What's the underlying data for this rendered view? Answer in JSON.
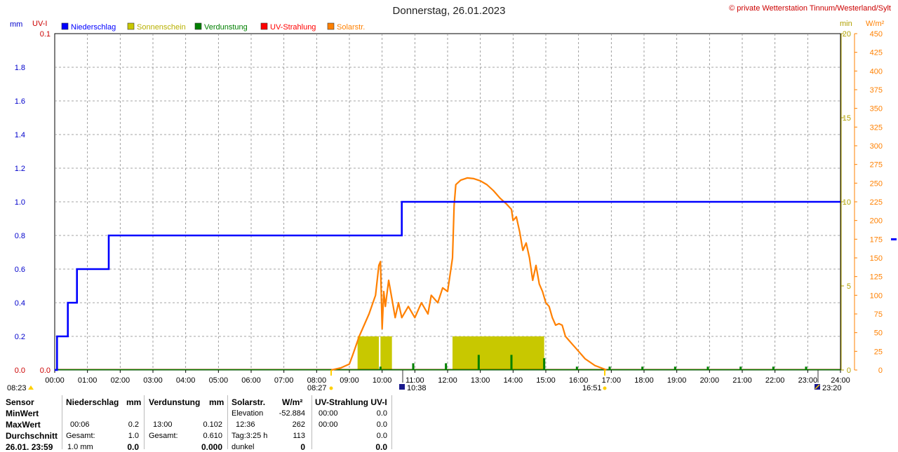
{
  "header": {
    "title": "Donnerstag, 26.01.2023",
    "copyright": "© private Wetterstation Tinnum/Westerland/Sylt",
    "unit_mm": "mm",
    "unit_uvi": "UV-I",
    "unit_min": "min",
    "unit_wm2": "W/m²"
  },
  "legend": [
    {
      "label": "Niederschlag",
      "color": "#0000ff"
    },
    {
      "label": "Sonnenschein",
      "color": "#c8c800"
    },
    {
      "label": "Verdunstung",
      "color": "#008000"
    },
    {
      "label": "UV-Strahlung",
      "color": "#ff0000"
    },
    {
      "label": "Solarstr.",
      "color": "#ff8000"
    }
  ],
  "sun_markers": {
    "sunrise": "08:23",
    "sunrise_alt": "08:27",
    "max_time": "10:38",
    "sunset": "16:51",
    "moon": "23:20"
  },
  "chart_data": {
    "type": "line",
    "title": "Donnerstag, 26.01.2023",
    "x_range": [
      "00:00",
      "24:00"
    ],
    "x_ticks": [
      "00:00",
      "01:00",
      "02:00",
      "03:00",
      "04:00",
      "05:00",
      "06:00",
      "07:00",
      "08:00",
      "09:00",
      "10:00",
      "11:00",
      "12:00",
      "13:00",
      "14:00",
      "15:00",
      "16:00",
      "17:00",
      "18:00",
      "19:00",
      "20:00",
      "21:00",
      "22:00",
      "23:00",
      "24:00"
    ],
    "axes": {
      "mm": {
        "ticks": [
          "0.0",
          "0.2",
          "0.4",
          "0.6",
          "0.8",
          "1.0",
          "1.2",
          "1.4",
          "1.6",
          "1.8"
        ],
        "range": [
          0,
          2.0
        ]
      },
      "uvi": {
        "ticks": [
          "0.0",
          "0.1"
        ],
        "range": [
          0,
          0.1
        ]
      },
      "min": {
        "ticks": [
          "0",
          "5",
          "10",
          "15",
          "20"
        ],
        "range": [
          0,
          20
        ]
      },
      "wm2": {
        "ticks": [
          "0",
          "25",
          "50",
          "75",
          "100",
          "125",
          "150",
          "175",
          "200",
          "225",
          "250",
          "275",
          "300",
          "325",
          "350",
          "375",
          "400",
          "425",
          "450"
        ],
        "range": [
          0,
          450
        ]
      }
    },
    "grid": true,
    "series": [
      {
        "name": "Niederschlag",
        "axis": "mm",
        "color": "#0000ff",
        "style": "step",
        "points": [
          [
            0.0,
            0.0
          ],
          [
            0.07,
            0.2
          ],
          [
            0.4,
            0.4
          ],
          [
            0.68,
            0.6
          ],
          [
            1.65,
            0.8
          ],
          [
            10.6,
            1.0
          ],
          [
            24.0,
            1.0
          ]
        ]
      },
      {
        "name": "Sonnenschein",
        "axis": "min",
        "color": "#c8c800",
        "style": "bar",
        "intervals": [
          [
            9.25,
            9.9,
            2.0
          ],
          [
            9.95,
            10.3,
            2.0
          ],
          [
            12.15,
            14.95,
            2.0
          ]
        ]
      },
      {
        "name": "Verdunstung",
        "axis": "mm",
        "color": "#008000",
        "style": "spikes",
        "points": [
          [
            9.95,
            0.02
          ],
          [
            10.95,
            0.04
          ],
          [
            11.95,
            0.04
          ],
          [
            12.95,
            0.09
          ],
          [
            13.95,
            0.09
          ],
          [
            14.95,
            0.07
          ],
          [
            15.95,
            0.02
          ],
          [
            16.95,
            0.02
          ],
          [
            17.95,
            0.02
          ],
          [
            18.95,
            0.02
          ],
          [
            19.95,
            0.02
          ],
          [
            20.95,
            0.02
          ],
          [
            21.95,
            0.02
          ],
          [
            22.95,
            0.02
          ]
        ]
      },
      {
        "name": "UV-Strahlung",
        "axis": "uvi",
        "color": "#ff0000",
        "style": "line",
        "points": [
          [
            0,
            0
          ],
          [
            24,
            0
          ]
        ]
      },
      {
        "name": "Solarstr.",
        "axis": "wm2",
        "color": "#ff8000",
        "style": "line",
        "points": [
          [
            8.45,
            0
          ],
          [
            8.75,
            3
          ],
          [
            9.0,
            8
          ],
          [
            9.1,
            20
          ],
          [
            9.3,
            45
          ],
          [
            9.6,
            75
          ],
          [
            9.8,
            100
          ],
          [
            9.9,
            140
          ],
          [
            9.95,
            145
          ],
          [
            10.0,
            55
          ],
          [
            10.05,
            105
          ],
          [
            10.1,
            85
          ],
          [
            10.2,
            120
          ],
          [
            10.3,
            95
          ],
          [
            10.4,
            70
          ],
          [
            10.5,
            90
          ],
          [
            10.6,
            70
          ],
          [
            10.8,
            85
          ],
          [
            11.0,
            70
          ],
          [
            11.2,
            90
          ],
          [
            11.4,
            75
          ],
          [
            11.5,
            100
          ],
          [
            11.7,
            90
          ],
          [
            11.85,
            110
          ],
          [
            12.0,
            105
          ],
          [
            12.1,
            135
          ],
          [
            12.15,
            150
          ],
          [
            12.2,
            220
          ],
          [
            12.25,
            248
          ],
          [
            12.4,
            254
          ],
          [
            12.6,
            257
          ],
          [
            12.8,
            256
          ],
          [
            13.0,
            253
          ],
          [
            13.2,
            248
          ],
          [
            13.4,
            240
          ],
          [
            13.6,
            230
          ],
          [
            13.8,
            222
          ],
          [
            13.95,
            215
          ],
          [
            14.0,
            200
          ],
          [
            14.1,
            205
          ],
          [
            14.2,
            185
          ],
          [
            14.3,
            160
          ],
          [
            14.4,
            170
          ],
          [
            14.5,
            150
          ],
          [
            14.6,
            120
          ],
          [
            14.7,
            140
          ],
          [
            14.8,
            115
          ],
          [
            14.9,
            105
          ],
          [
            15.0,
            90
          ],
          [
            15.1,
            85
          ],
          [
            15.2,
            70
          ],
          [
            15.3,
            60
          ],
          [
            15.4,
            62
          ],
          [
            15.5,
            60
          ],
          [
            15.6,
            45
          ],
          [
            15.8,
            35
          ],
          [
            16.0,
            25
          ],
          [
            16.2,
            15
          ],
          [
            16.5,
            6
          ],
          [
            16.8,
            1
          ],
          [
            16.85,
            0
          ]
        ]
      }
    ]
  },
  "stats": {
    "header": {
      "sensor": "Sensor",
      "rain": "Niederschlag",
      "rain_unit": "mm",
      "evap": "Verdunstung",
      "evap_unit": "mm",
      "solar": "Solarstr.",
      "solar_unit": "W/m²",
      "uv": "UV-Strahlung UV-I"
    },
    "rows": [
      {
        "label": "MinWert",
        "rain_time": "",
        "rain_val": "",
        "evap_time": "",
        "evap_val": "",
        "solar_time": "Elevation",
        "solar_val": "-52.884",
        "uv_time": "00:00",
        "uv_val": "0.0"
      },
      {
        "label": "MaxWert",
        "rain_time": "00:06",
        "rain_val": "0.2",
        "evap_time": "13:00",
        "evap_val": "0.102",
        "solar_time": "12:36",
        "solar_val": "262",
        "uv_time": "00:00",
        "uv_val": "0.0"
      },
      {
        "label": "Durchschnitt",
        "rain_time": "Gesamt:",
        "rain_val": "1.0",
        "evap_time": "Gesamt:",
        "evap_val": "0.610",
        "solar_time": "Tag:3:25 h",
        "solar_val": "113",
        "uv_time": "",
        "uv_val": "0.0"
      },
      {
        "label": "26.01. 23:59",
        "rain_time": "1.0 mm",
        "rain_val": "0.0",
        "evap_time": "",
        "evap_val": "0.000",
        "solar_time": "dunkel",
        "solar_val": "0",
        "uv_time": "",
        "uv_val": "0.0"
      }
    ]
  }
}
